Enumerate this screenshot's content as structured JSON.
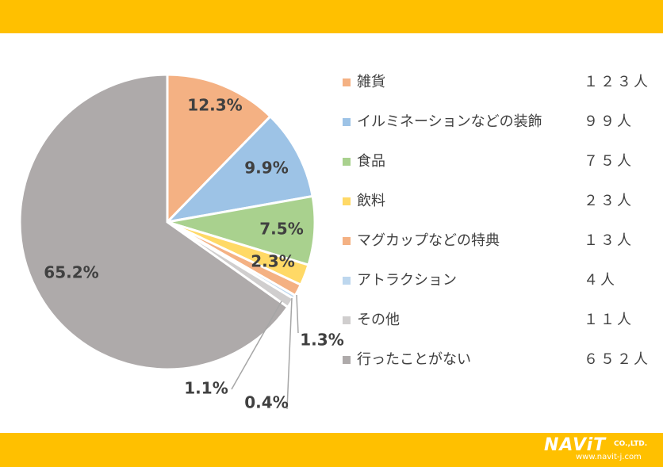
{
  "colors": {
    "band": "#FFC000",
    "slice_outline": "#ffffff",
    "label": "#404040"
  },
  "chart_data": {
    "type": "pie",
    "start_angle": "12 o'clock, clockwise",
    "legend_placement": "right",
    "slices": [
      {
        "name": "雑貨",
        "count_label": "１２３人",
        "value": 123,
        "percent_label": "12.3%",
        "color": "#F4B183"
      },
      {
        "name": "イルミネーションなどの装飾",
        "count_label": "９９人",
        "value": 99,
        "percent_label": "9.9%",
        "color": "#9DC3E6"
      },
      {
        "name": "食品",
        "count_label": "７５人",
        "value": 75,
        "percent_label": "7.5%",
        "color": "#A9D18E"
      },
      {
        "name": "飲料",
        "count_label": "２３人",
        "value": 23,
        "percent_label": "2.3%",
        "color": "#FFD966"
      },
      {
        "name": "マグカップなどの特典",
        "count_label": "１３人",
        "value": 13,
        "percent_label": "1.3%",
        "color": "#F4B183"
      },
      {
        "name": "アトラクション",
        "count_label": "４人",
        "value": 4,
        "percent_label": "0.4%",
        "color": "#BDD7EE"
      },
      {
        "name": "その他",
        "count_label": "１１人",
        "value": 11,
        "percent_label": "1.1%",
        "color": "#D0CECE"
      },
      {
        "name": "行ったことがない",
        "count_label": "６５２人",
        "value": 652,
        "percent_label": "65.2%",
        "color": "#AEAAAA"
      }
    ]
  },
  "logo": {
    "main": "NAViT",
    "suffix": "CO.,LTD.",
    "url": "www.navit-j.com"
  }
}
